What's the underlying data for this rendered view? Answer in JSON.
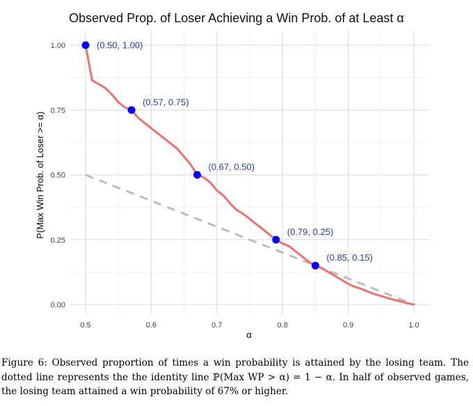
{
  "chart_data": {
    "type": "line",
    "title": "Observed Prop. of Loser Achieving a Win Prob. of at Least α",
    "xlabel": "α",
    "ylabel": "P(Max Win Prob. of Loser >= α)",
    "xlim": [
      0.5,
      1.0
    ],
    "ylim": [
      0.0,
      1.0
    ],
    "x_ticks": [
      "0.5",
      "0.6",
      "0.7",
      "0.8",
      "0.9",
      "1.0"
    ],
    "y_ticks": [
      "0.00",
      "0.25",
      "0.50",
      "0.75",
      "1.00"
    ],
    "grid": true,
    "series": [
      {
        "role": "observed",
        "color": "#f07070",
        "style": "solid",
        "x": [
          0.5,
          0.51,
          0.52,
          0.53,
          0.54,
          0.55,
          0.56,
          0.57,
          0.58,
          0.59,
          0.6,
          0.61,
          0.62,
          0.63,
          0.64,
          0.65,
          0.66,
          0.67,
          0.68,
          0.69,
          0.7,
          0.71,
          0.72,
          0.73,
          0.74,
          0.75,
          0.76,
          0.77,
          0.78,
          0.79,
          0.8,
          0.81,
          0.82,
          0.83,
          0.84,
          0.85,
          0.86,
          0.87,
          0.88,
          0.89,
          0.9,
          0.91,
          0.92,
          0.93,
          0.94,
          0.95,
          0.96,
          0.97,
          0.98,
          0.99,
          1.0
        ],
        "y": [
          1.0,
          0.865,
          0.85,
          0.835,
          0.81,
          0.78,
          0.76,
          0.75,
          0.72,
          0.7,
          0.68,
          0.66,
          0.64,
          0.62,
          0.6,
          0.57,
          0.54,
          0.5,
          0.49,
          0.47,
          0.44,
          0.42,
          0.39,
          0.365,
          0.35,
          0.33,
          0.31,
          0.29,
          0.27,
          0.25,
          0.235,
          0.225,
          0.205,
          0.185,
          0.165,
          0.15,
          0.14,
          0.125,
          0.11,
          0.095,
          0.08,
          0.068,
          0.06,
          0.05,
          0.04,
          0.033,
          0.025,
          0.018,
          0.012,
          0.005,
          0.0
        ]
      },
      {
        "role": "identity",
        "color": "#bdbdbd",
        "style": "dashed",
        "x": [
          0.5,
          1.0
        ],
        "y": [
          0.5,
          0.0
        ]
      }
    ],
    "points": [
      {
        "x": 0.5,
        "y": 1.0,
        "label": "(0.50, 1.00)"
      },
      {
        "x": 0.57,
        "y": 0.75,
        "label": "(0.57, 0.75)"
      },
      {
        "x": 0.67,
        "y": 0.5,
        "label": "(0.67, 0.50)"
      },
      {
        "x": 0.79,
        "y": 0.25,
        "label": "(0.79, 0.25)"
      },
      {
        "x": 0.85,
        "y": 0.15,
        "label": "(0.85, 0.15)"
      }
    ],
    "point_color": "#0000ff"
  },
  "caption": {
    "lines": [
      "Figure 6: Observed proportion of times a win probability is attained by the losing team. The",
      "dotted line represents the the identity line ℙ(Max WP > α) = 1 − α. In half of observed games,",
      "the losing team attained a win probability of 67% or higher."
    ]
  }
}
